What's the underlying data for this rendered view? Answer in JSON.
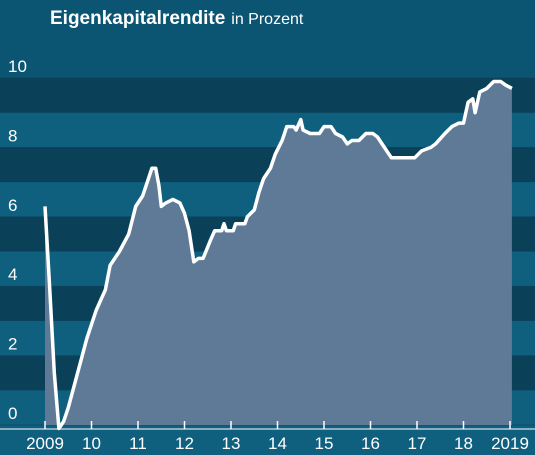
{
  "chart_data": {
    "type": "area",
    "title": "Eigenkapitalrendite",
    "subtitle": "in Prozent",
    "x": [
      2009.0,
      2009.1,
      2009.2,
      2009.3,
      2009.4,
      2009.5,
      2009.7,
      2009.9,
      2010.1,
      2010.3,
      2010.4,
      2010.6,
      2010.8,
      2010.95,
      2011.1,
      2011.2,
      2011.3,
      2011.38,
      2011.45,
      2011.5,
      2011.6,
      2011.75,
      2011.9,
      2012.0,
      2012.1,
      2012.2,
      2012.3,
      2012.4,
      2012.55,
      2012.65,
      2012.8,
      2012.85,
      2012.9,
      2013.05,
      2013.1,
      2013.3,
      2013.35,
      2013.5,
      2013.6,
      2013.7,
      2013.85,
      2013.95,
      2014.1,
      2014.2,
      2014.35,
      2014.4,
      2014.5,
      2014.55,
      2014.7,
      2014.9,
      2015.0,
      2015.15,
      2015.25,
      2015.4,
      2015.5,
      2015.6,
      2015.75,
      2015.9,
      2016.05,
      2016.15,
      2016.3,
      2016.45,
      2016.6,
      2016.8,
      2016.95,
      2017.1,
      2017.3,
      2017.4,
      2017.6,
      2017.75,
      2017.9,
      2018.0,
      2018.1,
      2018.2,
      2018.25,
      2018.35,
      2018.5,
      2018.65,
      2018.8,
      2018.9,
      2019.04
    ],
    "values": [
      6.3,
      4.0,
      1.5,
      -0.1,
      0.1,
      0.5,
      1.5,
      2.5,
      3.3,
      3.9,
      4.6,
      5.0,
      5.5,
      6.3,
      6.6,
      7.0,
      7.4,
      7.4,
      6.9,
      6.3,
      6.4,
      6.5,
      6.4,
      6.1,
      5.6,
      4.7,
      4.8,
      4.8,
      5.3,
      5.6,
      5.6,
      5.8,
      5.6,
      5.6,
      5.8,
      5.8,
      6.0,
      6.2,
      6.7,
      7.1,
      7.4,
      7.8,
      8.2,
      8.6,
      8.6,
      8.5,
      8.8,
      8.5,
      8.4,
      8.4,
      8.6,
      8.6,
      8.4,
      8.3,
      8.1,
      8.2,
      8.2,
      8.4,
      8.4,
      8.3,
      8.0,
      7.7,
      7.7,
      7.7,
      7.7,
      7.9,
      8.0,
      8.1,
      8.4,
      8.6,
      8.7,
      8.7,
      9.3,
      9.4,
      9.0,
      9.6,
      9.7,
      9.9,
      9.9,
      9.8,
      9.7
    ],
    "color": "#5f7a97",
    "line_color": "#ffffff",
    "xlim": [
      2009,
      2019
    ],
    "ylim": [
      0,
      10
    ],
    "xticks": [
      2009,
      {
        "value": 2010,
        "label": "10"
      },
      {
        "value": 2011,
        "label": "11"
      },
      {
        "value": 2012,
        "label": "12"
      },
      {
        "value": 2013,
        "label": "13"
      },
      {
        "value": 2014,
        "label": "14"
      },
      {
        "value": 2015,
        "label": "15"
      },
      {
        "value": 2016,
        "label": "16"
      },
      {
        "value": 2017,
        "label": "17"
      },
      {
        "value": 2018,
        "label": "18"
      },
      2019
    ],
    "yticks": [
      0,
      2,
      4,
      6,
      8,
      10
    ]
  }
}
